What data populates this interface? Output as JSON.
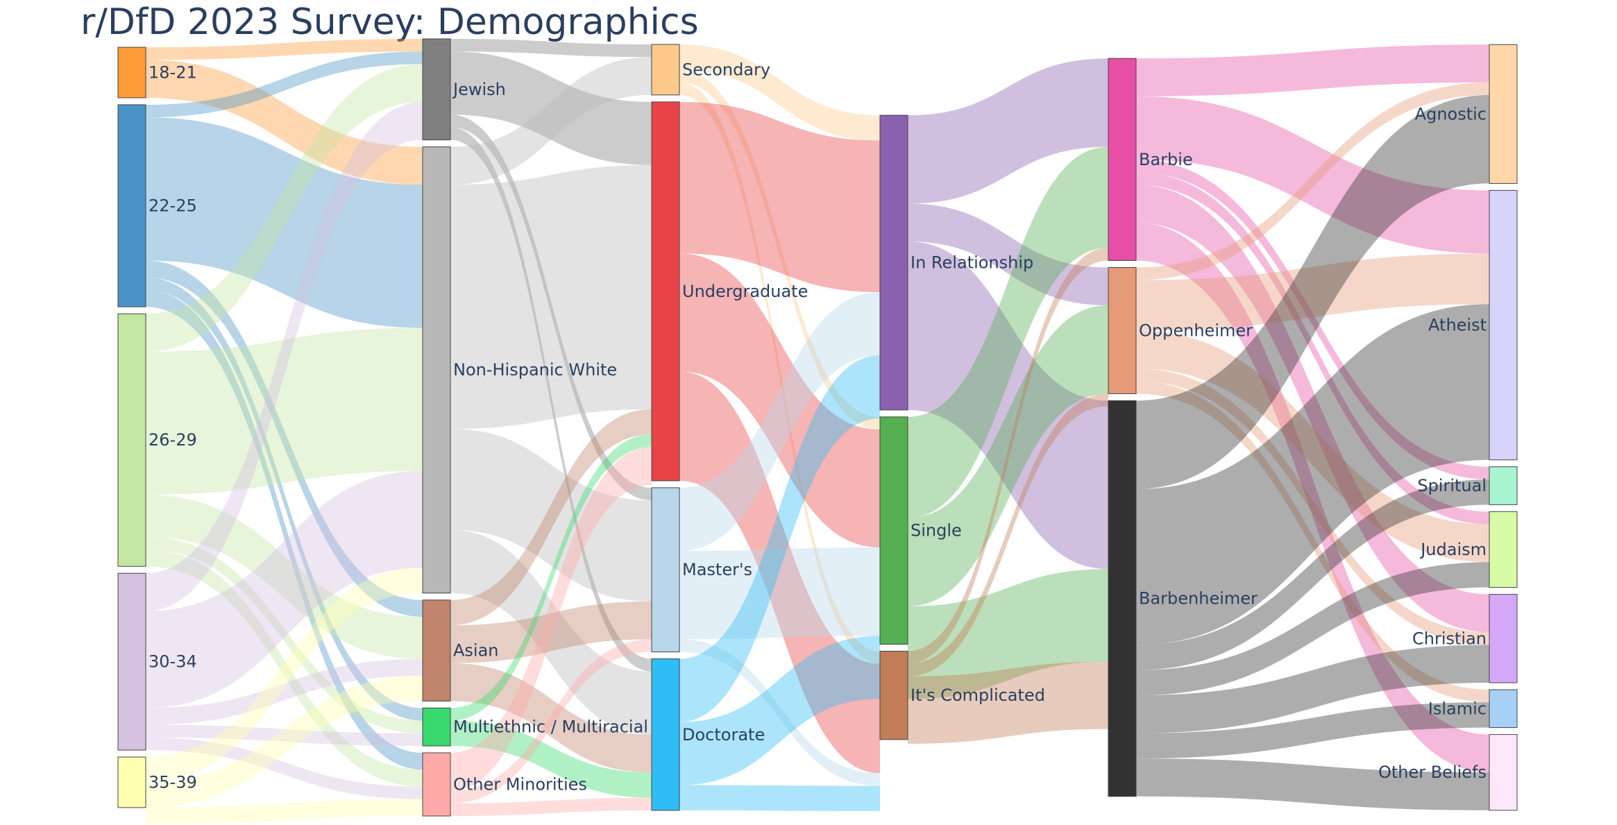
{
  "title": "r/DfD 2023 Survey: Demographics",
  "chart_data": {
    "type": "sankey",
    "columns": [
      {
        "id": "age",
        "nodes": [
          {
            "name": "18-21",
            "value": 6,
            "color": "#ff9c3a"
          },
          {
            "name": "22-25",
            "value": 24,
            "color": "#4a93c6"
          },
          {
            "name": "26-29",
            "value": 30,
            "color": "#c3e6a3"
          },
          {
            "name": "30-34",
            "value": 21,
            "color": "#d5c1e0"
          },
          {
            "name": "35-39",
            "value": 6,
            "color": "#ffffb0"
          }
        ]
      },
      {
        "id": "ethnicity",
        "nodes": [
          {
            "name": "Jewish",
            "value": 12,
            "color": "#808080"
          },
          {
            "name": "Non-Hispanic White",
            "value": 53,
            "color": "#b8b8b8"
          },
          {
            "name": "Asian",
            "value": 12,
            "color": "#c1846c"
          },
          {
            "name": "Multiethnic / Multiracial",
            "value": 4.5,
            "color": "#3ad96e"
          },
          {
            "name": "Other Minorities",
            "value": 7.5,
            "color": "#ffaaa8"
          }
        ]
      },
      {
        "id": "education",
        "nodes": [
          {
            "name": "Secondary",
            "value": 6,
            "color": "#fdca8a"
          },
          {
            "name": "Undergraduate",
            "value": 45,
            "color": "#e84447"
          },
          {
            "name": "Master's",
            "value": 19.5,
            "color": "#b9d6ea"
          },
          {
            "name": "Doctorate",
            "value": 18,
            "color": "#2fbdf5"
          }
        ]
      },
      {
        "id": "relationship",
        "nodes": [
          {
            "name": "In Relationship",
            "value": 35,
            "color": "#8c60b0"
          },
          {
            "name": "Single",
            "value": 27,
            "color": "#55b052"
          },
          {
            "name": "It's Complicated",
            "value": 10.5,
            "color": "#c27c57"
          }
        ]
      },
      {
        "id": "film",
        "nodes": [
          {
            "name": "Barbie",
            "value": 24,
            "color": "#e74fa6"
          },
          {
            "name": "Oppenheimer",
            "value": 15,
            "color": "#e69a77"
          },
          {
            "name": "Barbenheimer",
            "value": 47,
            "color": "#323232"
          }
        ]
      },
      {
        "id": "belief",
        "nodes": [
          {
            "name": "Agnostic",
            "value": 16.5,
            "color": "#ffd7a8"
          },
          {
            "name": "Atheist",
            "value": 32,
            "color": "#d7d3fb"
          },
          {
            "name": "Spiritual",
            "value": 4.5,
            "color": "#a8f5d2"
          },
          {
            "name": "Judaism",
            "value": 9,
            "color": "#d7fba6"
          },
          {
            "name": "Christian",
            "value": 10.5,
            "color": "#d5a8fa"
          },
          {
            "name": "Islamic",
            "value": 4.5,
            "color": "#a8d0f7"
          },
          {
            "name": "Other Beliefs",
            "value": 9,
            "color": "#fde8fb"
          }
        ]
      }
    ],
    "links": [
      {
        "source": "18-21",
        "target": "Jewish",
        "value": 1.5
      },
      {
        "source": "18-21",
        "target": "Non-Hispanic White",
        "value": 4.5
      },
      {
        "source": "22-25",
        "target": "Jewish",
        "value": 1.5
      },
      {
        "source": "22-25",
        "target": "Non-Hispanic White",
        "value": 17
      },
      {
        "source": "22-25",
        "target": "Asian",
        "value": 2
      },
      {
        "source": "22-25",
        "target": "Multiethnic / Multiracial",
        "value": 1.5
      },
      {
        "source": "22-25",
        "target": "Other Minorities",
        "value": 2
      },
      {
        "source": "26-29",
        "target": "Jewish",
        "value": 4.5
      },
      {
        "source": "26-29",
        "target": "Non-Hispanic White",
        "value": 17
      },
      {
        "source": "26-29",
        "target": "Asian",
        "value": 5
      },
      {
        "source": "26-29",
        "target": "Multiethnic / Multiracial",
        "value": 1.5
      },
      {
        "source": "26-29",
        "target": "Other Minorities",
        "value": 2
      },
      {
        "source": "30-34",
        "target": "Jewish",
        "value": 4.5
      },
      {
        "source": "30-34",
        "target": "Non-Hispanic White",
        "value": 11.5
      },
      {
        "source": "30-34",
        "target": "Asian",
        "value": 2
      },
      {
        "source": "30-34",
        "target": "Multiethnic / Multiracial",
        "value": 1.5
      },
      {
        "source": "30-34",
        "target": "Other Minorities",
        "value": 1.5
      },
      {
        "source": "35-39",
        "target": "Non-Hispanic White",
        "value": 3
      },
      {
        "source": "35-39",
        "target": "Asian",
        "value": 3
      },
      {
        "source": "35-39",
        "target": "Other Minorities",
        "value": 2
      },
      {
        "source": "Jewish",
        "target": "Secondary",
        "value": 1.5
      },
      {
        "source": "Jewish",
        "target": "Undergraduate",
        "value": 7.5
      },
      {
        "source": "Jewish",
        "target": "Master's",
        "value": 1.5
      },
      {
        "source": "Jewish",
        "target": "Doctorate",
        "value": 1.5
      },
      {
        "source": "Non-Hispanic White",
        "target": "Secondary",
        "value": 4.5
      },
      {
        "source": "Non-Hispanic White",
        "target": "Undergraduate",
        "value": 29
      },
      {
        "source": "Non-Hispanic White",
        "target": "Master's",
        "value": 12
      },
      {
        "source": "Non-Hispanic White",
        "target": "Doctorate",
        "value": 7.5
      },
      {
        "source": "Asian",
        "target": "Undergraduate",
        "value": 3
      },
      {
        "source": "Asian",
        "target": "Master's",
        "value": 4.5
      },
      {
        "source": "Asian",
        "target": "Doctorate",
        "value": 4.5
      },
      {
        "source": "Multiethnic / Multiracial",
        "target": "Undergraduate",
        "value": 1.5
      },
      {
        "source": "Multiethnic / Multiracial",
        "target": "Doctorate",
        "value": 3
      },
      {
        "source": "Other Minorities",
        "target": "Undergraduate",
        "value": 4.5
      },
      {
        "source": "Other Minorities",
        "target": "Master's",
        "value": 1.5
      },
      {
        "source": "Other Minorities",
        "target": "Doctorate",
        "value": 1.5
      },
      {
        "source": "Secondary",
        "target": "In Relationship",
        "value": 3
      },
      {
        "source": "Secondary",
        "target": "Single",
        "value": 1.5
      },
      {
        "source": "Secondary",
        "target": "It's Complicated",
        "value": 1.5
      },
      {
        "source": "Undergraduate",
        "target": "In Relationship",
        "value": 18
      },
      {
        "source": "Undergraduate",
        "target": "Single",
        "value": 14
      },
      {
        "source": "Undergraduate",
        "target": "It's Complicated",
        "value": 13
      },
      {
        "source": "Master's",
        "target": "In Relationship",
        "value": 7.5
      },
      {
        "source": "Master's",
        "target": "Single",
        "value": 10.5
      },
      {
        "source": "Master's",
        "target": "It's Complicated",
        "value": 1.5
      },
      {
        "source": "Doctorate",
        "target": "In Relationship",
        "value": 7.5
      },
      {
        "source": "Doctorate",
        "target": "Single",
        "value": 7.5
      },
      {
        "source": "Doctorate",
        "target": "It's Complicated",
        "value": 3
      },
      {
        "source": "In Relationship",
        "target": "Barbie",
        "value": 10.5
      },
      {
        "source": "In Relationship",
        "target": "Oppenheimer",
        "value": 4.5
      },
      {
        "source": "In Relationship",
        "target": "Barbenheimer",
        "value": 20
      },
      {
        "source": "Single",
        "target": "Barbie",
        "value": 12
      },
      {
        "source": "Single",
        "target": "Oppenheimer",
        "value": 10.5
      },
      {
        "source": "Single",
        "target": "Barbenheimer",
        "value": 11
      },
      {
        "source": "It's Complicated",
        "target": "Barbie",
        "value": 1.5
      },
      {
        "source": "It's Complicated",
        "target": "Oppenheimer",
        "value": 1.5
      },
      {
        "source": "It's Complicated",
        "target": "Barbenheimer",
        "value": 8
      },
      {
        "source": "Barbie",
        "target": "Agnostic",
        "value": 4.5
      },
      {
        "source": "Barbie",
        "target": "Atheist",
        "value": 7.5
      },
      {
        "source": "Barbie",
        "target": "Spiritual",
        "value": 1.5
      },
      {
        "source": "Barbie",
        "target": "Judaism",
        "value": 1.5
      },
      {
        "source": "Barbie",
        "target": "Christian",
        "value": 4.5
      },
      {
        "source": "Barbie",
        "target": "Other Beliefs",
        "value": 4.5
      },
      {
        "source": "Oppenheimer",
        "target": "Agnostic",
        "value": 1.5
      },
      {
        "source": "Oppenheimer",
        "target": "Atheist",
        "value": 6
      },
      {
        "source": "Oppenheimer",
        "target": "Judaism",
        "value": 4.5
      },
      {
        "source": "Oppenheimer",
        "target": "Christian",
        "value": 1.5
      },
      {
        "source": "Oppenheimer",
        "target": "Islamic",
        "value": 1.5
      },
      {
        "source": "Barbenheimer",
        "target": "Agnostic",
        "value": 10.5
      },
      {
        "source": "Barbenheimer",
        "target": "Atheist",
        "value": 18.5
      },
      {
        "source": "Barbenheimer",
        "target": "Spiritual",
        "value": 3
      },
      {
        "source": "Barbenheimer",
        "target": "Judaism",
        "value": 3
      },
      {
        "source": "Barbenheimer",
        "target": "Christian",
        "value": 4.5
      },
      {
        "source": "Barbenheimer",
        "target": "Islamic",
        "value": 3
      },
      {
        "source": "Barbenheimer",
        "target": "Other Beliefs",
        "value": 4.5
      }
    ],
    "label_side": {
      "age": "right",
      "ethnicity": "right",
      "education": "right",
      "relationship": "right",
      "film": "right",
      "belief": "left"
    },
    "link_opacity": 0.4
  }
}
